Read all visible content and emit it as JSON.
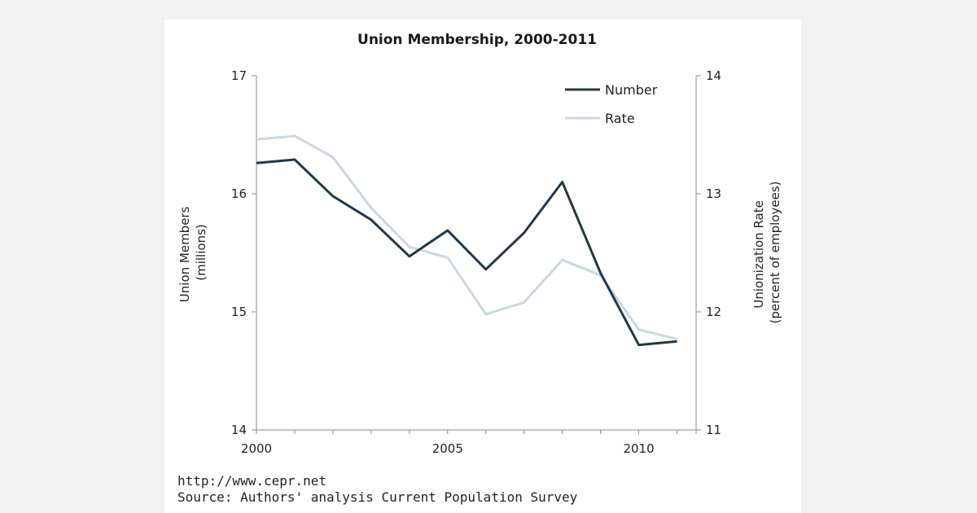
{
  "chart_data": {
    "type": "line",
    "title": "Union Membership, 2000-2011",
    "x": [
      2000,
      2001,
      2002,
      2003,
      2004,
      2005,
      2006,
      2007,
      2008,
      2009,
      2010,
      2011
    ],
    "x_ticks": [
      "2000",
      "2005",
      "2010"
    ],
    "xlim": [
      2000,
      2011.5
    ],
    "ylabel_left": [
      "Union Members",
      "(millions)"
    ],
    "ylabel_right": [
      "Unionization Rate",
      "(percent of employees)"
    ],
    "ylim_left": [
      14,
      17
    ],
    "ylim_right": [
      11,
      14
    ],
    "y_ticks_left": [
      "14",
      "15",
      "16",
      "17"
    ],
    "y_ticks_right": [
      "11",
      "12",
      "13",
      "14"
    ],
    "legend_position": "top-right",
    "grid": false,
    "series": [
      {
        "name": "Number",
        "axis": "left",
        "color": "#243746",
        "values": [
          16.26,
          16.29,
          15.98,
          15.78,
          15.47,
          15.69,
          15.36,
          15.67,
          16.1,
          15.33,
          14.72,
          14.75
        ]
      },
      {
        "name": "Rate",
        "axis": "right",
        "color": "#c9d7e2",
        "values": [
          13.46,
          13.49,
          13.31,
          12.88,
          12.55,
          12.46,
          11.98,
          12.08,
          12.44,
          12.31,
          11.85,
          11.77
        ]
      }
    ]
  },
  "footer": {
    "url": "http://www.cepr.net",
    "source": "Source: Authors' analysis Current Population Survey"
  }
}
